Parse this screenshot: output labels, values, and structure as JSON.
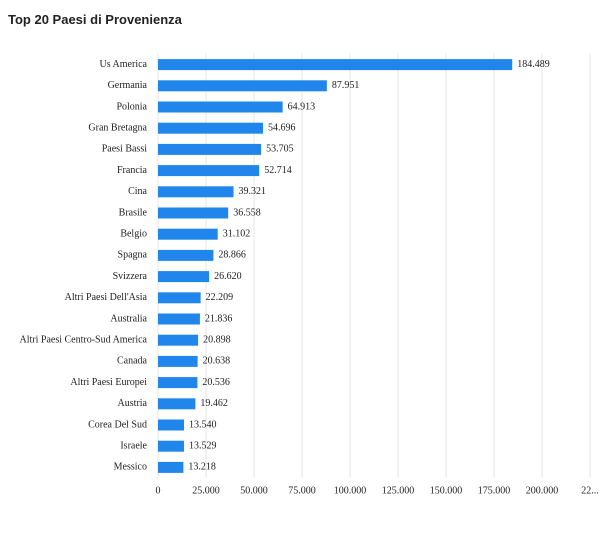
{
  "chart_data": {
    "type": "bar",
    "orientation": "horizontal",
    "title": "Top 20 Paesi di Provenienza",
    "categories": [
      "Us America",
      "Germania",
      "Polonia",
      "Gran Bretagna",
      "Paesi Bassi",
      "Francia",
      "Cina",
      "Brasile",
      "Belgio",
      "Spagna",
      "Svizzera",
      "Altri Paesi Dell'Asia",
      "Australia",
      "Altri Paesi Centro-Sud America",
      "Canada",
      "Altri Paesi Europei",
      "Austria",
      "Corea Del Sud",
      "Israele",
      "Messico"
    ],
    "values": [
      184489,
      87951,
      64913,
      54696,
      53705,
      52714,
      39321,
      36558,
      31102,
      28866,
      26620,
      22209,
      21836,
      20898,
      20638,
      20536,
      19462,
      13540,
      13529,
      13218
    ],
    "value_labels": [
      "184.489",
      "87.951",
      "64.913",
      "54.696",
      "53.705",
      "52.714",
      "39.321",
      "36.558",
      "31.102",
      "28.866",
      "26.620",
      "22.209",
      "21.836",
      "20.898",
      "20.638",
      "20.536",
      "19.462",
      "13.540",
      "13.529",
      "13.218"
    ],
    "color": "#2186eb",
    "xlim": [
      0,
      225000
    ],
    "xticks": [
      0,
      {
        "value": 25000,
        "label": "25.000"
      },
      {
        "value": 50000,
        "label": "50.000"
      },
      {
        "value": 75000,
        "label": "75.000"
      },
      {
        "value": 100000,
        "label": "100.000"
      },
      {
        "value": 125000,
        "label": "125.000"
      },
      {
        "value": 150000,
        "label": "150.000"
      },
      {
        "value": 175000,
        "label": "175.000"
      },
      {
        "value": 200000,
        "label": "200.000"
      },
      {
        "value": 225000,
        "label": "22..."
      }
    ],
    "grid": true
  }
}
